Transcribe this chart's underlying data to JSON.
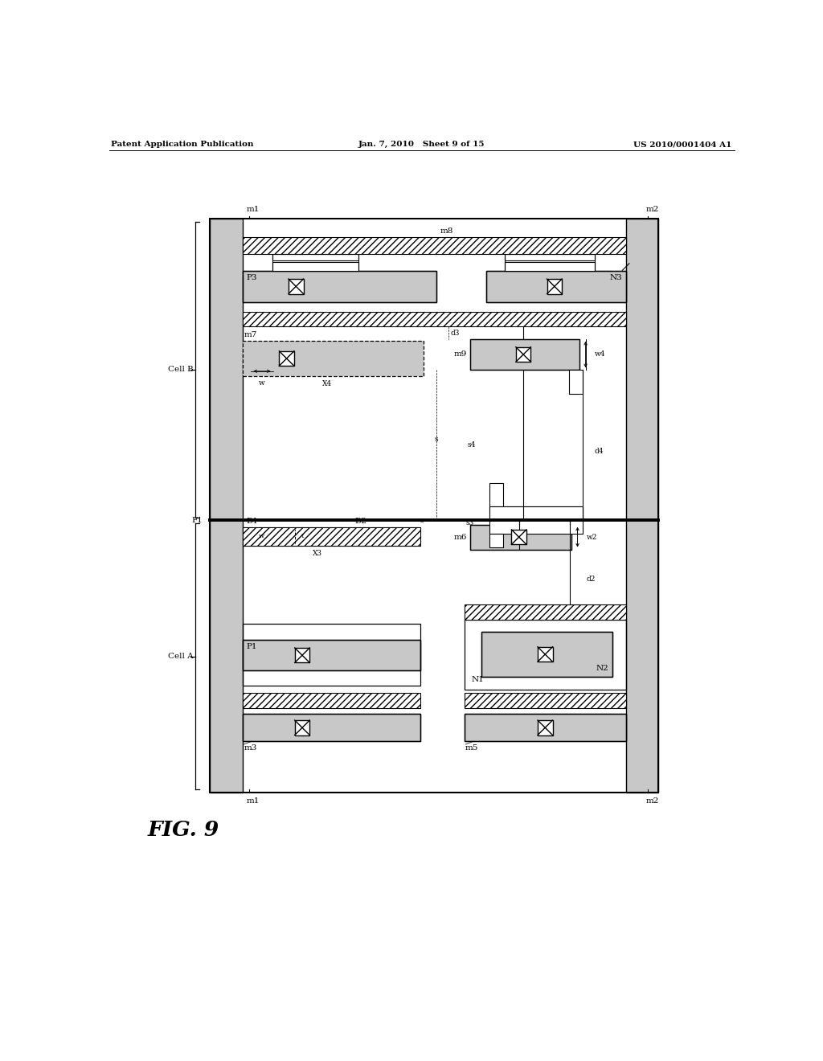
{
  "title_left": "Patent Application Publication",
  "title_mid": "Jan. 7, 2010   Sheet 9 of 15",
  "title_right": "US 2010/0001404 A1",
  "fig_label": "FIG. 9",
  "bg_color": "#ffffff"
}
